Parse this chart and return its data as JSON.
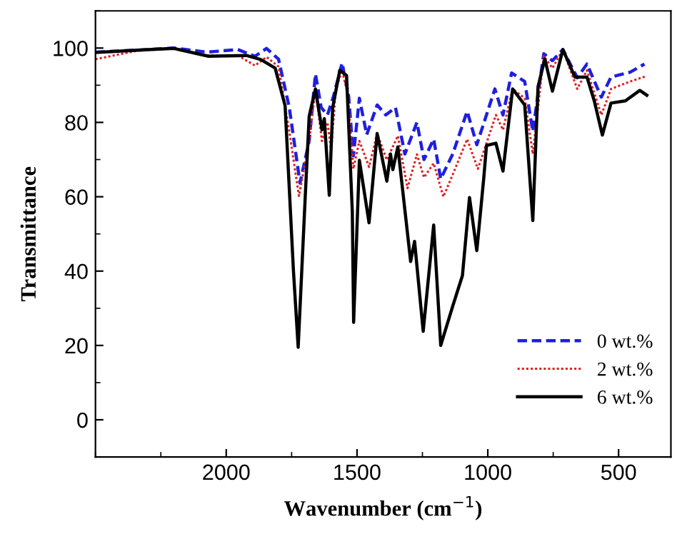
{
  "chart_data": {
    "type": "line",
    "xlabel": "Wavenumber (cm$^{−1}$)",
    "ylabel": "Transmittance",
    "xlim": [
      2500,
      300
    ],
    "ylim": [
      -10,
      110
    ],
    "xticks": [
      2000,
      1500,
      1000,
      500
    ],
    "yticks": [
      0,
      20,
      40,
      60,
      80,
      100
    ],
    "grid": false,
    "legend": "bottom right",
    "marker": "none",
    "series": [
      {
        "name": "0 wt.%",
        "color": "#1f1fe0",
        "line_style": "dashed",
        "x": [
          2500,
          2325,
          2200,
          2073,
          1956,
          1890,
          1846,
          1800,
          1759,
          1718,
          1683,
          1659,
          1637,
          1613,
          1590,
          1557,
          1532,
          1514,
          1491,
          1463,
          1423,
          1390,
          1353,
          1317,
          1271,
          1244,
          1207,
          1180,
          1134,
          1079,
          1042,
          973,
          942,
          909,
          859,
          828,
          786,
          753,
          713,
          658,
          621,
          566,
          529,
          456,
          401
        ],
        "values": [
          98.9,
          99.5,
          100,
          98.9,
          99.6,
          97.8,
          99.9,
          97,
          84,
          63.7,
          75,
          93,
          84,
          82,
          87,
          96,
          87,
          71,
          86.5,
          76.7,
          84.7,
          82,
          84,
          71.5,
          80,
          70,
          75.5,
          64.8,
          71.5,
          83,
          74,
          89,
          82,
          93.3,
          91,
          77.6,
          98.5,
          96.6,
          99.6,
          92,
          95.7,
          86.8,
          92.2,
          93.5,
          95.7
        ]
      },
      {
        "name": "2 wt.%",
        "color": "#e02020",
        "line_style": "dotted",
        "x": [
          2500,
          2325,
          2200,
          2073,
          1956,
          1890,
          1846,
          1800,
          1759,
          1722,
          1683,
          1659,
          1634,
          1613,
          1599,
          1581,
          1557,
          1535,
          1514,
          1491,
          1454,
          1423,
          1386,
          1344,
          1307,
          1271,
          1244,
          1207,
          1170,
          1125,
          1079,
          1038,
          969,
          942,
          905,
          859,
          828,
          786,
          753,
          713,
          658,
          621,
          566,
          529,
          456,
          392
        ],
        "values": [
          97,
          99.5,
          100,
          98,
          98,
          95.3,
          97.6,
          95,
          77.5,
          60.2,
          75,
          89,
          75,
          80,
          72.5,
          89,
          94,
          87.3,
          67.5,
          75,
          68,
          77,
          69.9,
          76.4,
          62.3,
          71.4,
          65.2,
          69,
          60,
          67.5,
          75.5,
          67.5,
          82,
          78,
          89,
          86.5,
          71.5,
          97.8,
          94.6,
          99.6,
          89,
          94,
          82,
          89,
          91,
          92.5
        ]
      },
      {
        "name": "6 wt.%",
        "color": "#000000",
        "line_style": "solid",
        "x": [
          2500,
          2325,
          2200,
          2068,
          1923,
          1868,
          1813,
          1775,
          1743,
          1725,
          1698,
          1683,
          1659,
          1634,
          1625,
          1606,
          1593,
          1566,
          1540,
          1518,
          1513,
          1491,
          1454,
          1423,
          1386,
          1372,
          1363,
          1344,
          1317,
          1295,
          1280,
          1247,
          1207,
          1180,
          1134,
          1097,
          1070,
          1042,
          1015,
          1005,
          969,
          942,
          905,
          859,
          828,
          808,
          782,
          753,
          713,
          667,
          621,
          593,
          562,
          529,
          474,
          419,
          392
        ],
        "values": [
          98.8,
          99.5,
          99.9,
          97.8,
          98,
          96.9,
          94.6,
          84.5,
          40,
          19.5,
          60,
          81.6,
          89,
          78,
          81,
          60.4,
          84,
          94,
          92.6,
          56,
          26.2,
          69.8,
          53,
          77,
          64.2,
          71.5,
          67.3,
          73.4,
          56.4,
          42.6,
          48,
          23.8,
          52.4,
          20,
          30.6,
          38.8,
          59.8,
          45.5,
          65.4,
          73.8,
          74.4,
          66.9,
          89,
          84.7,
          53.6,
          89.6,
          97.1,
          88.4,
          99.6,
          92.2,
          92.2,
          85.8,
          76.6,
          85.2,
          85.8,
          88.6,
          87.3
        ]
      }
    ]
  }
}
